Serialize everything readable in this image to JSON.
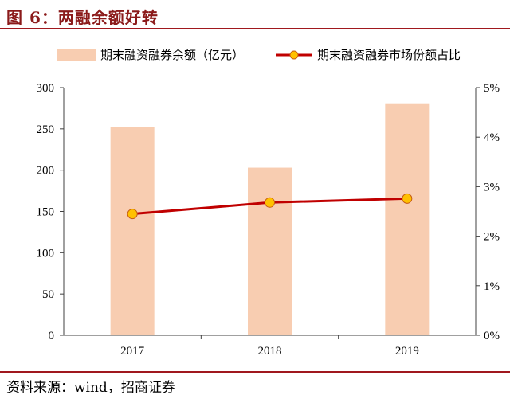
{
  "title": "图 6：两融余额好转",
  "source": "资料来源：wind，招商证券",
  "colors": {
    "bar": "#f8cdb1",
    "line": "#c00000",
    "marker_fill": "#ffc000",
    "marker_edge": "#c55a11",
    "brand": "#a0181e"
  },
  "chart_data": {
    "type": "bar",
    "categories": [
      "2017",
      "2018",
      "2019"
    ],
    "series": [
      {
        "name": "期末融资融券余额（亿元）",
        "type": "bar",
        "axis": "left",
        "values": [
          252,
          203,
          281
        ]
      },
      {
        "name": "期末融资融券市场份额占比",
        "type": "line",
        "axis": "right",
        "values": [
          2.45,
          2.68,
          2.76
        ]
      }
    ],
    "left_axis": {
      "ylim": [
        0,
        300
      ],
      "ticks": [
        "0",
        "50",
        "100",
        "150",
        "200",
        "250",
        "300"
      ]
    },
    "right_axis": {
      "ylim": [
        0,
        5
      ],
      "ticks": [
        "0%",
        "1%",
        "2%",
        "3%",
        "4%",
        "5%"
      ]
    },
    "legend_position": "top",
    "grid": false
  }
}
